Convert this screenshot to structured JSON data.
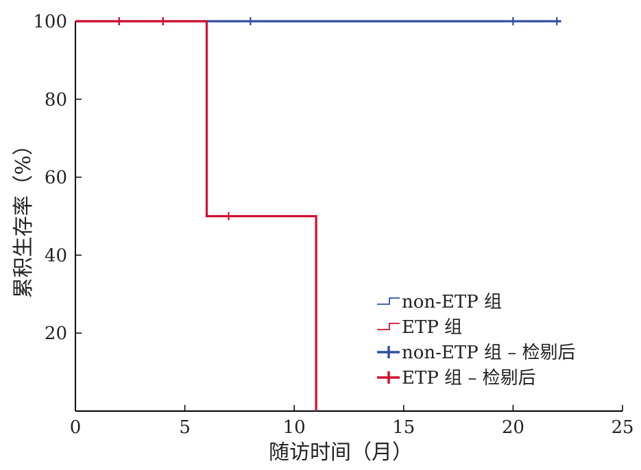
{
  "chart_data": {
    "type": "line",
    "subtype": "kaplan-meier step",
    "xlabel": "随访时间（月）",
    "ylabel": "累积生存率（%）",
    "xlim": [
      0,
      25
    ],
    "ylim": [
      0,
      100
    ],
    "xticks": [
      0,
      5,
      10,
      15,
      20,
      25
    ],
    "yticks": [
      20,
      40,
      60,
      80,
      100
    ],
    "grid": false,
    "legend_position": "bottom-right",
    "series": [
      {
        "name": "non-ETP 组",
        "color": "#2f4fa2",
        "x": [
          0,
          22.2
        ],
        "y": [
          100,
          100
        ],
        "censored": [
          {
            "x": 2,
            "y": 100
          },
          {
            "x": 4,
            "y": 100
          },
          {
            "x": 8,
            "y": 100
          },
          {
            "x": 20,
            "y": 100
          },
          {
            "x": 22,
            "y": 100
          }
        ]
      },
      {
        "name": "ETP 组",
        "color": "#d0102e",
        "x": [
          0,
          6,
          6,
          11,
          11
        ],
        "y": [
          100,
          100,
          50,
          50,
          0
        ],
        "censored": [
          {
            "x": 2,
            "y": 100
          },
          {
            "x": 4,
            "y": 100
          },
          {
            "x": 7,
            "y": 50
          }
        ]
      }
    ],
    "legend": [
      {
        "label": "non-ETP 组",
        "color": "#2f4fa2",
        "style": "step"
      },
      {
        "label": "ETP 组",
        "color": "#d0102e",
        "style": "step"
      },
      {
        "label": "non-ETP 组 – 检剔后",
        "color": "#2f4fa2",
        "style": "censor"
      },
      {
        "label": "ETP 组 – 检剔后",
        "color": "#d0102e",
        "style": "censor"
      }
    ]
  }
}
